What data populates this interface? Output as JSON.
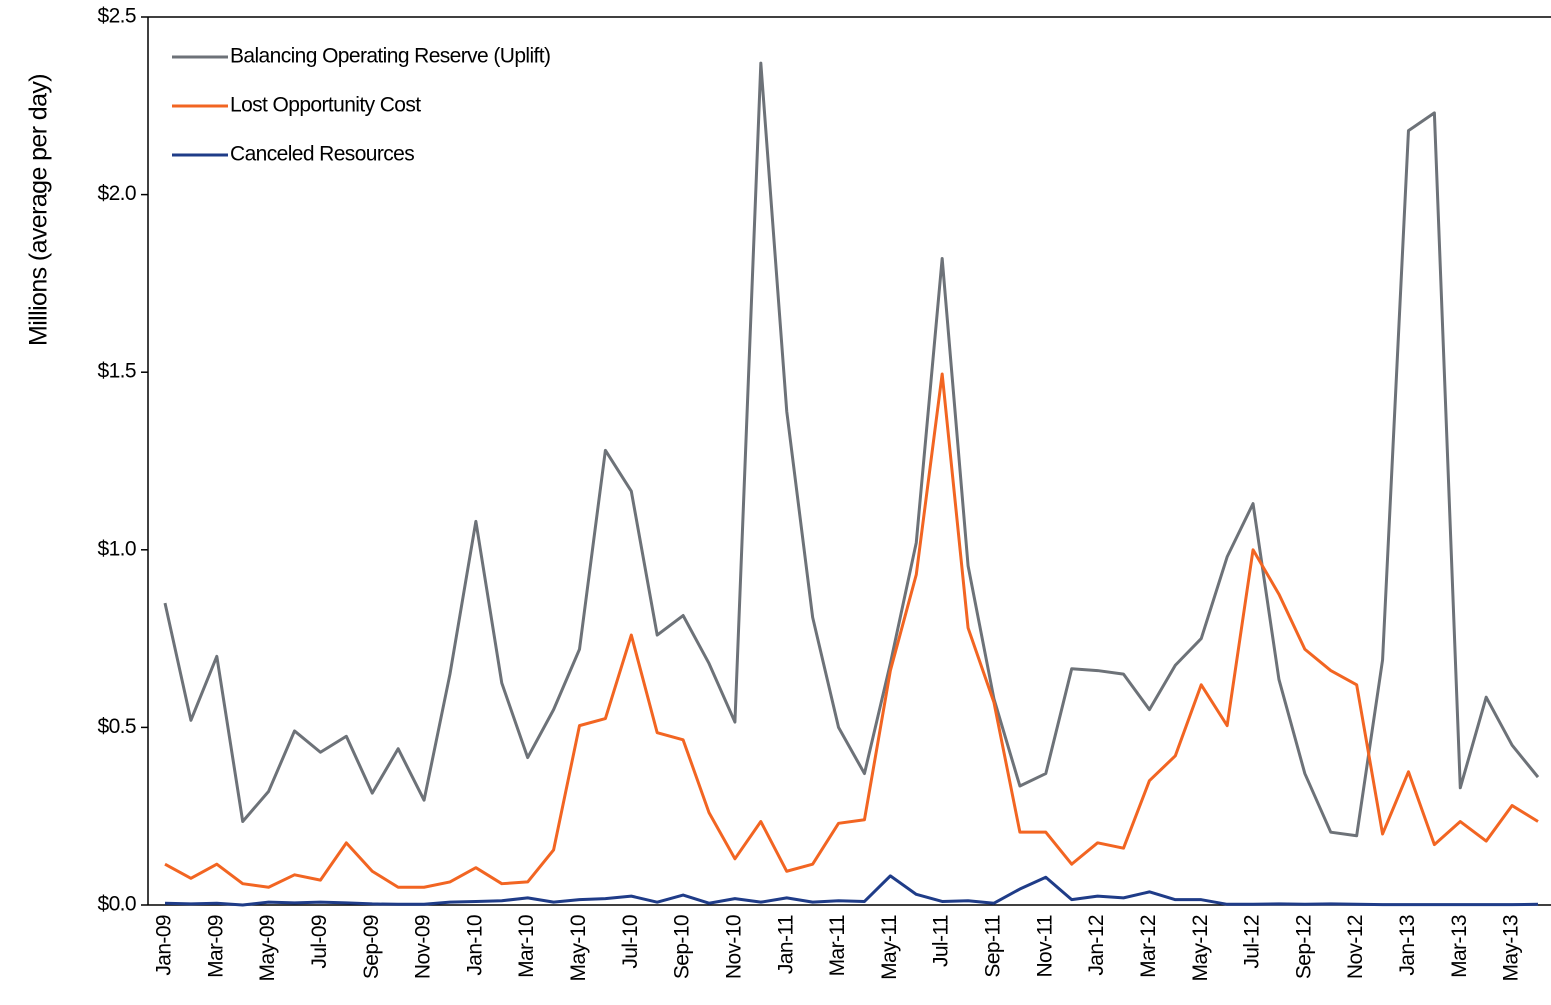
{
  "chart_data": {
    "type": "line",
    "y_label": "Millions (average per day)",
    "categories": [
      "Jan-09",
      null,
      "Mar-09",
      null,
      "May-09",
      null,
      "Jul-09",
      null,
      "Sep-09",
      null,
      "Nov-09",
      null,
      "Jan-10",
      null,
      "Mar-10",
      null,
      "May-10",
      null,
      "Jul-10",
      null,
      "Sep-10",
      null,
      "Nov-10",
      null,
      "Jan-11",
      null,
      "Mar-11",
      null,
      "May-11",
      null,
      "Jul-11",
      null,
      "Sep-11",
      null,
      "Nov-11",
      null,
      "Jan-12",
      null,
      "Mar-12",
      null,
      "May-12",
      null,
      "Jul-12",
      null,
      "Sep-12",
      null,
      "Nov-12",
      null,
      "Jan-13",
      null,
      "Mar-13",
      null,
      "May-13",
      null
    ],
    "series": [
      {
        "name": "Balancing Operating Reserve (Uplift)",
        "color": "#6d7278",
        "values": [
          0.85,
          0.52,
          0.7,
          0.235,
          0.32,
          0.49,
          0.43,
          0.475,
          0.315,
          0.44,
          0.295,
          0.65,
          1.08,
          0.625,
          0.415,
          0.55,
          0.72,
          1.28,
          1.165,
          0.76,
          0.815,
          0.68,
          0.515,
          2.37,
          1.39,
          0.81,
          0.5,
          0.37,
          0.68,
          1.02,
          1.82,
          0.955,
          0.58,
          0.335,
          0.37,
          0.665,
          0.66,
          0.65,
          0.55,
          0.675,
          0.75,
          0.98,
          1.13,
          0.635,
          0.37,
          0.205,
          0.195,
          0.69,
          2.18,
          2.23,
          0.33,
          0.585,
          0.45,
          0.36
        ]
      },
      {
        "name": "Lost Opportunity Cost",
        "color": "#f26522",
        "values": [
          0.115,
          0.075,
          0.115,
          0.06,
          0.05,
          0.085,
          0.07,
          0.175,
          0.095,
          0.05,
          0.05,
          0.065,
          0.105,
          0.06,
          0.065,
          0.155,
          0.505,
          0.525,
          0.76,
          0.485,
          0.465,
          0.26,
          0.13,
          0.235,
          0.095,
          0.115,
          0.23,
          0.24,
          0.66,
          0.93,
          1.495,
          0.78,
          0.57,
          0.205,
          0.205,
          0.115,
          0.175,
          0.16,
          0.35,
          0.42,
          0.62,
          0.505,
          1.0,
          0.875,
          0.72,
          0.66,
          0.62,
          0.2,
          0.375,
          0.17,
          0.235,
          0.18,
          0.28,
          0.235
        ]
      },
      {
        "name": "Canceled Resources",
        "color": "#1f3c88",
        "values": [
          0.005,
          0.003,
          0.005,
          0.0,
          0.008,
          0.006,
          0.008,
          0.006,
          0.003,
          0.002,
          0.002,
          0.008,
          0.01,
          0.012,
          0.02,
          0.008,
          0.015,
          0.018,
          0.025,
          0.008,
          0.028,
          0.005,
          0.018,
          0.008,
          0.02,
          0.008,
          0.012,
          0.01,
          0.082,
          0.03,
          0.01,
          0.012,
          0.005,
          0.045,
          0.078,
          0.015,
          0.025,
          0.02,
          0.037,
          0.015,
          0.015,
          0.002,
          0.002,
          0.003,
          0.002,
          0.003,
          0.002,
          0.001,
          0.001,
          0.001,
          0.001,
          0.001,
          0.001,
          0.002
        ]
      }
    ],
    "ylim": [
      0,
      2.5
    ],
    "yticks": [
      {
        "value": 0,
        "label": "$0.0"
      },
      {
        "value": 0.5,
        "label": "$0.5"
      },
      {
        "value": 1,
        "label": "$1.0"
      },
      {
        "value": 1.5,
        "label": "$1.5"
      },
      {
        "value": 2,
        "label": "$2.0"
      },
      {
        "value": 2.5,
        "label": "$2.5"
      }
    ],
    "legend": "upper-left"
  }
}
